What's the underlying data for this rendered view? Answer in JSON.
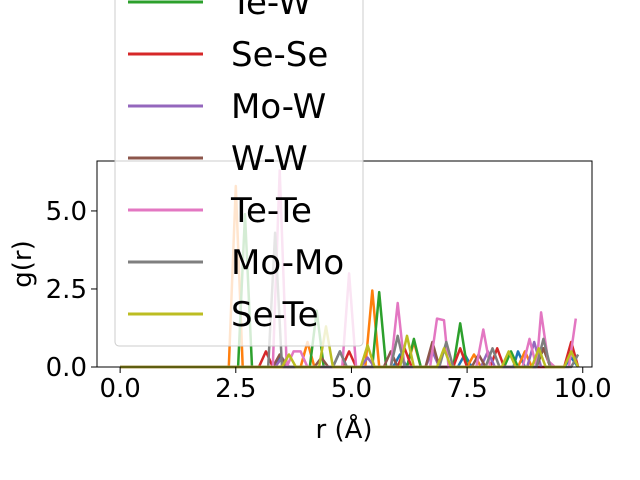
{
  "chart_data": {
    "type": "line",
    "xlabel": "r (Å)",
    "ylabel": "g(r)",
    "xlim": [
      -0.5,
      10.2
    ],
    "ylim": [
      0,
      6.6
    ],
    "xticks": [
      0.0,
      2.5,
      5.0,
      7.5,
      10.0
    ],
    "xtick_labels": [
      "0.0",
      "2.5",
      "5.0",
      "7.5",
      "10.0"
    ],
    "yticks": [
      0.0,
      2.5,
      5.0
    ],
    "ytick_labels": [
      "0.0",
      "2.5",
      "5.0"
    ],
    "grid": false,
    "legend_position": "upper-left, overflowing above plot",
    "series": [
      {
        "name": "",
        "color": "#1f77b4",
        "x": [
          0,
          3.3,
          3.45,
          3.6,
          4.6,
          4.75,
          4.9,
          5.9,
          6.05,
          6.2,
          7.3,
          7.45,
          7.6,
          8.5,
          8.6,
          8.75,
          9.6,
          9.75,
          9.9
        ],
        "y": [
          0,
          0,
          0.3,
          0,
          0,
          0.5,
          0,
          0,
          0.4,
          0,
          0,
          0.4,
          0,
          0,
          0.5,
          0,
          0,
          0.3,
          0
        ]
      },
      {
        "name": "",
        "color": "#ff7f0e",
        "x": [
          0,
          2.35,
          2.5,
          2.65,
          3.9,
          4.05,
          4.2,
          5.3,
          5.45,
          5.6,
          6.2,
          6.35,
          6.5,
          7.5,
          7.65,
          7.8,
          8.6,
          8.75,
          8.9
        ],
        "y": [
          0,
          0,
          5.8,
          0,
          0,
          0.8,
          0,
          0,
          2.45,
          0,
          0,
          0.8,
          0,
          0,
          0.4,
          0,
          0,
          0.5,
          0
        ]
      },
      {
        "name": "Te-W",
        "color": "#2ca02c",
        "x": [
          0,
          2.55,
          2.7,
          2.85,
          4.1,
          4.25,
          4.4,
          5.45,
          5.6,
          5.75,
          6.2,
          6.35,
          6.5,
          7.2,
          7.35,
          7.5,
          8.3,
          8.45,
          8.6,
          9.0,
          9.15,
          9.3
        ],
        "y": [
          0,
          0,
          4.9,
          0,
          0,
          1.8,
          0,
          0,
          2.4,
          0,
          0,
          0.9,
          0,
          0,
          1.4,
          0,
          0,
          0.5,
          0,
          0,
          0.6,
          0
        ]
      },
      {
        "name": "Se-Se",
        "color": "#d62728",
        "x": [
          0,
          3.0,
          3.15,
          3.3,
          4.8,
          4.95,
          5.1,
          6.0,
          6.15,
          6.3,
          7.2,
          7.35,
          7.5,
          8.0,
          8.15,
          8.3,
          9.6,
          9.75,
          9.9
        ],
        "y": [
          0,
          0,
          0.5,
          0,
          0,
          0.5,
          0,
          0,
          0.6,
          0,
          0,
          0.6,
          0,
          0,
          0.6,
          0,
          0,
          0.8,
          0
        ]
      },
      {
        "name": "Mo-W",
        "color": "#9467bd",
        "x": [
          0,
          3.35,
          3.5,
          3.65,
          5.2,
          5.35,
          5.5,
          6.6,
          6.75,
          6.9,
          7.8,
          7.95,
          8.1,
          8.8,
          8.95,
          9.1
        ],
        "y": [
          0,
          0,
          0.3,
          0,
          0,
          0.3,
          0,
          0,
          0.5,
          0,
          0,
          0.5,
          0,
          0,
          0.8,
          0
        ]
      },
      {
        "name": "W-W",
        "color": "#8c564b",
        "x": [
          0,
          3.3,
          3.45,
          3.6,
          4.2,
          4.35,
          4.5,
          5.7,
          5.85,
          6.0,
          6.6,
          6.75,
          6.9,
          7.6,
          7.75,
          7.9,
          9.0,
          9.15,
          9.3
        ],
        "y": [
          0,
          0,
          0.4,
          0,
          0,
          0.3,
          0,
          0,
          0.5,
          0,
          0,
          0.8,
          0,
          0,
          0.4,
          0,
          0,
          0.6,
          0
        ]
      },
      {
        "name": "Te-Te",
        "color": "#e377c2",
        "x": [
          0,
          3.3,
          3.45,
          3.6,
          3.75,
          3.9,
          4.05,
          4.8,
          4.95,
          5.1,
          5.85,
          6.0,
          6.15,
          6.7,
          6.85,
          7.0,
          7.1,
          7.7,
          7.85,
          8.0,
          8.7,
          8.85,
          9.0,
          9.1,
          9.25,
          9.4,
          9.7,
          9.85
        ],
        "y": [
          0,
          0,
          6.3,
          0,
          0.5,
          0.5,
          0,
          0,
          3.0,
          0,
          0,
          2.05,
          0,
          0,
          1.55,
          1.5,
          0,
          0,
          1.2,
          0,
          0,
          0.9,
          0,
          1.75,
          0.2,
          0,
          0,
          1.55
        ]
      },
      {
        "name": "Mo-Mo",
        "color": "#7f7f7f",
        "x": [
          0,
          3.2,
          3.35,
          3.5,
          4.6,
          4.75,
          4.9,
          5.85,
          6.0,
          6.15,
          6.9,
          7.05,
          7.2,
          7.9,
          8.05,
          8.2,
          9.0,
          9.15,
          9.3,
          9.75,
          9.9
        ],
        "y": [
          0,
          0,
          4.3,
          0,
          0,
          0.5,
          0,
          0,
          1.0,
          0,
          0,
          0.8,
          0,
          0,
          0.6,
          0,
          0,
          0.9,
          0,
          0,
          0.4
        ]
      },
      {
        "name": "Se-Te",
        "color": "#bcbd22",
        "x": [
          0,
          3.5,
          3.65,
          3.8,
          4.3,
          4.45,
          4.6,
          5.2,
          5.35,
          5.5,
          6.05,
          6.2,
          6.35,
          6.85,
          7.0,
          7.15,
          8.25,
          8.4,
          8.55,
          8.9,
          9.05,
          9.2,
          9.6,
          9.75,
          9.9
        ],
        "y": [
          0,
          0,
          0.4,
          0,
          0,
          1.3,
          0,
          0,
          0.7,
          0,
          0,
          1.0,
          0,
          0,
          0.6,
          0,
          0,
          0.5,
          0,
          0,
          0.6,
          0,
          0,
          0.5,
          0
        ]
      }
    ]
  }
}
